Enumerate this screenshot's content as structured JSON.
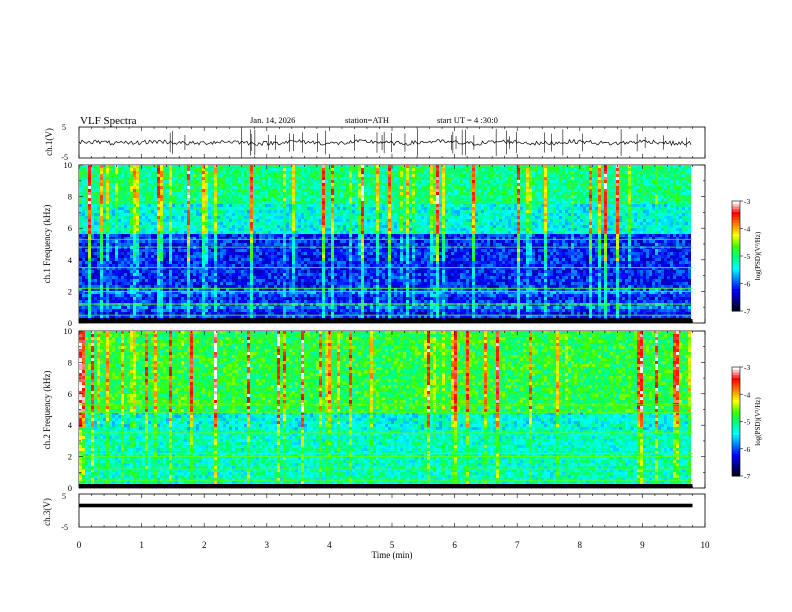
{
  "header": {
    "title": "VLF Spectra",
    "date": "Jan. 14, 2026",
    "station": "station=ATH",
    "start": "start UT =  4 :30:0"
  },
  "colors": {
    "background": "#ffffff",
    "axis": "#000000",
    "colormap": [
      "#000000",
      "#000080",
      "#0000ff",
      "#0080ff",
      "#00ffff",
      "#00ff80",
      "#40ff00",
      "#ffff00",
      "#ff8000",
      "#ff0000",
      "#ffffff"
    ]
  },
  "chart_data": [
    {
      "type": "line",
      "name": "ch1-waveform",
      "ylabel": "ch.1(V)",
      "ylim": [
        -5,
        5
      ],
      "y_ticks": [
        "5",
        "-5"
      ],
      "xlim": [
        0,
        10
      ],
      "grid": false
    },
    {
      "type": "heatmap",
      "name": "ch1-spectrogram",
      "ylabel": "ch.1 Frequency (kHz)",
      "ylim": [
        0,
        10
      ],
      "y_ticks": [
        "0",
        "2",
        "4",
        "6",
        "8",
        "10"
      ],
      "xlim": [
        0,
        10
      ],
      "colorbar": {
        "label": "log(PSD)(V²/Hz)",
        "range": [
          -7,
          -3
        ],
        "ticks": [
          "-3",
          "-4",
          "-5",
          "-6",
          "-7"
        ]
      }
    },
    {
      "type": "heatmap",
      "name": "ch2-spectrogram",
      "ylabel": "ch.2 Frequency (kHz)",
      "ylim": [
        0,
        10
      ],
      "y_ticks": [
        "0",
        "2",
        "4",
        "6",
        "8",
        "10"
      ],
      "xlim": [
        0,
        10
      ],
      "colorbar": {
        "label": "log(PSD)(V²/Hz)",
        "range": [
          -7,
          -3
        ],
        "ticks": [
          "-3",
          "-4",
          "-5",
          "-6",
          "-7"
        ]
      }
    },
    {
      "type": "line",
      "name": "ch3-waveform",
      "ylabel": "ch.3(V)",
      "ylim": [
        -5,
        5
      ],
      "y_ticks": [
        "5",
        "-5"
      ],
      "xlim": [
        0,
        10
      ],
      "x_ticks": [
        "0",
        "1",
        "2",
        "3",
        "4",
        "5",
        "6",
        "7",
        "8",
        "9",
        "10"
      ],
      "xlabel": "Time (min)",
      "data_end_min": 9.8,
      "grid": false
    }
  ]
}
